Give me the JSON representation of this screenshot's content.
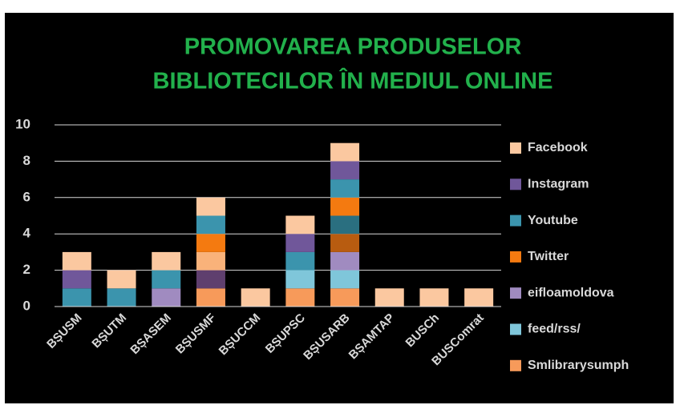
{
  "chart_data": {
    "type": "stacked_bar",
    "title": [
      "PROMOVAREA PRODUSELOR",
      "BIBLIOTECILOR ÎN MEDIUL ONLINE"
    ],
    "categories": [
      "BȘUSM",
      "BȘUTM",
      "BȘASEM",
      "BȘUSMF",
      "BȘUCCM",
      "BȘUPSC",
      "BȘUSARB",
      "BȘAMTAP",
      "BUSCh",
      "BUSComrat"
    ],
    "series": [
      {
        "name": "Smlibrarysumph",
        "color": "#f79a5a",
        "values": [
          0,
          0,
          0,
          1,
          0,
          1,
          1,
          0,
          0,
          0
        ]
      },
      {
        "name": "feed/rss/",
        "color": "#7fc6da",
        "values": [
          0,
          0,
          0,
          0,
          0,
          1,
          1,
          0,
          0,
          0
        ]
      },
      {
        "name": "eifloamoldova",
        "color": "#a08bc0",
        "values": [
          0,
          0,
          1,
          0,
          0,
          0,
          1,
          0,
          0,
          0
        ]
      },
      {
        "color": "#5f3f6e",
        "values": [
          0,
          0,
          0,
          1,
          0,
          0,
          0,
          0,
          0,
          0
        ]
      },
      {
        "color": "#f9b27a",
        "values": [
          0,
          0,
          0,
          1,
          0,
          0,
          0,
          0,
          0,
          0
        ]
      },
      {
        "color": "#b85c10",
        "values": [
          0,
          0,
          0,
          0,
          0,
          0,
          1,
          0,
          0,
          0
        ]
      },
      {
        "color": "#2a6f80",
        "values": [
          0,
          0,
          0,
          0,
          0,
          0,
          1,
          0,
          0,
          0
        ]
      },
      {
        "name": "Twitter",
        "color": "#f47a10",
        "values": [
          0,
          0,
          0,
          1,
          0,
          0,
          1,
          0,
          0,
          0
        ]
      },
      {
        "name": "Youtube",
        "color": "#3b94ad",
        "values": [
          1,
          1,
          1,
          1,
          0,
          1,
          1,
          0,
          0,
          0
        ]
      },
      {
        "name": "Instagram",
        "color": "#70579a",
        "values": [
          1,
          0,
          0,
          0,
          0,
          1,
          1,
          0,
          0,
          0
        ]
      },
      {
        "name": "Facebook",
        "color": "#fbc8a0",
        "values": [
          1,
          1,
          1,
          1,
          1,
          1,
          1,
          1,
          1,
          1
        ]
      }
    ],
    "ylim": [
      0,
      10
    ],
    "yticks": [
      0,
      2,
      4,
      6,
      8,
      10
    ],
    "grid": true,
    "legend": "right"
  }
}
